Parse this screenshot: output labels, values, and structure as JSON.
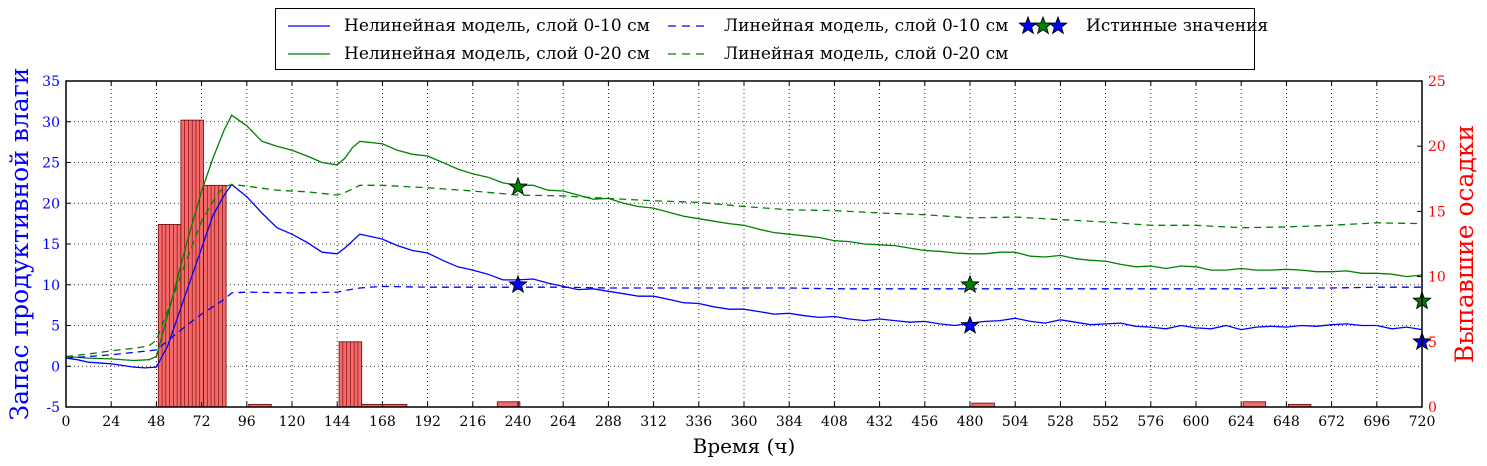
{
  "colors": {
    "blue": "#0000ff",
    "green": "#008000",
    "precip_fill": "#f46a6a",
    "precip_edge": "#6b0000",
    "left_axis": "#0000ff",
    "right_axis": "#ff0000"
  },
  "chart_data": {
    "type": "line",
    "xlabel": "Время (ч)",
    "ylabel_left": "Запас продуктивной влаги",
    "ylabel_right": "Выпавшие осадки",
    "xlim": [
      0,
      720
    ],
    "ylim_left": [
      -5,
      35
    ],
    "ylim_right": [
      0,
      25
    ],
    "x_ticks": [
      0,
      24,
      48,
      72,
      96,
      120,
      144,
      168,
      192,
      216,
      240,
      264,
      288,
      312,
      336,
      360,
      384,
      408,
      432,
      456,
      480,
      504,
      528,
      552,
      576,
      600,
      624,
      648,
      672,
      696,
      720
    ],
    "y_ticks_left": [
      -5,
      0,
      5,
      10,
      15,
      20,
      25,
      30,
      35
    ],
    "y_ticks_right": [
      0,
      5,
      10,
      15,
      20,
      25
    ],
    "grid": true,
    "legend": {
      "placement": "top",
      "entries": [
        "Нелинейная модель, слой 0-10 см",
        "Нелинейная модель, слой 0-20 см",
        "Линейная модель, слой 0-10 см",
        "Линейная модель, слой 0-20 см",
        "Истинные значения"
      ]
    },
    "series": [
      {
        "name": "Нелинейная модель, слой 0-10 см",
        "color": "#0000ff",
        "style": "solid",
        "x": [
          0,
          6,
          12,
          24,
          36,
          42,
          48,
          54,
          60,
          66,
          72,
          78,
          84,
          88,
          96,
          104,
          112,
          120,
          128,
          136,
          144,
          148,
          156,
          160,
          168,
          176,
          184,
          192,
          200,
          208,
          216,
          224,
          232,
          240,
          248,
          256,
          264,
          272,
          280,
          288,
          296,
          304,
          312,
          320,
          328,
          336,
          344,
          352,
          360,
          368,
          376,
          384,
          392,
          400,
          408,
          416,
          424,
          432,
          440,
          448,
          456,
          464,
          472,
          480,
          488,
          496,
          504,
          512,
          520,
          528,
          536,
          544,
          552,
          560,
          568,
          576,
          584,
          592,
          600,
          608,
          616,
          624,
          632,
          640,
          648,
          656,
          664,
          672,
          680,
          688,
          696,
          704,
          712,
          720
        ],
        "y": [
          1.0,
          0.8,
          0.5,
          0.3,
          -0.1,
          -0.2,
          -0.1,
          2.5,
          6.5,
          10.5,
          14.5,
          18.5,
          21.0,
          22.3,
          20.8,
          18.8,
          17.0,
          16.2,
          15.2,
          14.0,
          13.8,
          14.5,
          16.2,
          16.0,
          15.6,
          14.8,
          14.2,
          13.9,
          13.0,
          12.2,
          11.8,
          11.3,
          10.6,
          10.6,
          10.7,
          10.2,
          9.8,
          9.4,
          9.5,
          9.2,
          8.9,
          8.6,
          8.6,
          8.2,
          7.8,
          7.7,
          7.3,
          7.0,
          7.0,
          6.7,
          6.4,
          6.5,
          6.2,
          6.0,
          6.1,
          5.8,
          5.6,
          5.8,
          5.6,
          5.4,
          5.5,
          5.2,
          5.0,
          5.3,
          5.5,
          5.6,
          5.9,
          5.5,
          5.3,
          5.7,
          5.4,
          5.1,
          5.2,
          5.3,
          4.9,
          4.8,
          4.6,
          5.0,
          4.7,
          4.6,
          5.0,
          4.5,
          4.8,
          4.9,
          4.8,
          5.0,
          4.9,
          5.1,
          5.2,
          5.0,
          5.0,
          4.6,
          4.8,
          4.5
        ]
      },
      {
        "name": "Нелинейная модель, слой 0-20 см",
        "color": "#008000",
        "style": "solid",
        "x": [
          0,
          12,
          24,
          36,
          44,
          48,
          56,
          64,
          72,
          78,
          84,
          88,
          96,
          104,
          112,
          120,
          128,
          136,
          144,
          148,
          152,
          156,
          168,
          176,
          184,
          192,
          200,
          208,
          216,
          224,
          232,
          240,
          248,
          256,
          264,
          272,
          280,
          288,
          296,
          304,
          312,
          320,
          328,
          336,
          344,
          352,
          360,
          368,
          376,
          384,
          392,
          400,
          408,
          416,
          424,
          432,
          440,
          448,
          456,
          464,
          472,
          480,
          488,
          496,
          504,
          512,
          520,
          528,
          536,
          544,
          552,
          560,
          568,
          576,
          584,
          592,
          600,
          608,
          616,
          624,
          632,
          640,
          648,
          656,
          664,
          672,
          680,
          688,
          696,
          704,
          712,
          720
        ],
        "y": [
          1.2,
          1.0,
          0.9,
          0.7,
          0.8,
          1.2,
          8.0,
          15.0,
          21.5,
          25.5,
          29.0,
          30.8,
          29.5,
          27.6,
          27.0,
          26.5,
          25.8,
          25.0,
          24.7,
          25.5,
          26.8,
          27.6,
          27.3,
          26.5,
          26.0,
          25.8,
          25.0,
          24.2,
          23.6,
          23.2,
          22.5,
          22.2,
          22.2,
          21.6,
          21.5,
          21.0,
          20.5,
          20.6,
          20.0,
          19.6,
          19.4,
          18.9,
          18.4,
          18.1,
          17.8,
          17.5,
          17.3,
          16.8,
          16.4,
          16.2,
          16.0,
          15.8,
          15.4,
          15.3,
          15.0,
          14.9,
          14.8,
          14.5,
          14.2,
          14.1,
          13.9,
          13.8,
          13.8,
          14.0,
          14.0,
          13.5,
          13.4,
          13.6,
          13.2,
          13.0,
          12.9,
          12.5,
          12.2,
          12.3,
          12.0,
          12.3,
          12.2,
          11.8,
          11.8,
          12.0,
          11.8,
          11.8,
          11.9,
          11.8,
          11.6,
          11.6,
          11.7,
          11.4,
          11.4,
          11.3,
          11.0,
          11.2
        ]
      },
      {
        "name": "Линейная модель, слой 0-10 см",
        "color": "#0000ff",
        "style": "dashed",
        "x": [
          0,
          12,
          24,
          36,
          44,
          48,
          56,
          64,
          72,
          80,
          84,
          88,
          96,
          120,
          144,
          148,
          156,
          168,
          192,
          216,
          240,
          264,
          288,
          312,
          336,
          360,
          384,
          408,
          432,
          456,
          480,
          504,
          528,
          552,
          576,
          600,
          624,
          648,
          672,
          696,
          720
        ],
        "y": [
          1.0,
          1.2,
          1.4,
          1.7,
          1.9,
          2.0,
          3.5,
          5.0,
          6.4,
          7.6,
          8.2,
          9.0,
          9.1,
          9.0,
          9.1,
          9.3,
          9.6,
          9.8,
          9.7,
          9.7,
          9.7,
          9.7,
          9.6,
          9.6,
          9.6,
          9.6,
          9.6,
          9.5,
          9.5,
          9.5,
          9.5,
          9.5,
          9.5,
          9.5,
          9.5,
          9.5,
          9.5,
          9.6,
          9.6,
          9.7,
          9.7
        ]
      },
      {
        "name": "Линейная модель, слой 0-20 см",
        "color": "#008000",
        "style": "dashed",
        "x": [
          0,
          12,
          24,
          36,
          44,
          48,
          56,
          64,
          72,
          80,
          84,
          88,
          96,
          112,
          128,
          144,
          148,
          156,
          168,
          192,
          216,
          240,
          264,
          288,
          312,
          336,
          360,
          384,
          408,
          432,
          456,
          480,
          504,
          528,
          552,
          576,
          600,
          624,
          648,
          672,
          696,
          720
        ],
        "y": [
          1.2,
          1.5,
          1.9,
          2.2,
          2.5,
          3.2,
          8.0,
          13.0,
          17.8,
          21.0,
          22.0,
          22.3,
          22.1,
          21.6,
          21.4,
          21.0,
          21.3,
          22.2,
          22.2,
          21.9,
          21.5,
          21.0,
          20.9,
          20.6,
          20.3,
          20.1,
          19.6,
          19.2,
          19.1,
          18.8,
          18.6,
          18.2,
          18.3,
          18.0,
          17.7,
          17.3,
          17.3,
          17.0,
          17.1,
          17.3,
          17.6,
          17.5
        ]
      }
    ],
    "true_values": [
      {
        "x": 240,
        "y": 10.0,
        "layer": "0-10",
        "color": "#0000ff"
      },
      {
        "x": 240,
        "y": 22.0,
        "layer": "0-20",
        "color": "#008000"
      },
      {
        "x": 480,
        "y": 5.0,
        "layer": "0-10",
        "color": "#0000ff"
      },
      {
        "x": 480,
        "y": 10.0,
        "layer": "0-20",
        "color": "#008000"
      },
      {
        "x": 720,
        "y": 3.0,
        "layer": "0-10",
        "color": "#0000ff"
      },
      {
        "x": 720,
        "y": 8.0,
        "layer": "0-20",
        "color": "#008000"
      }
    ],
    "precipitation": {
      "axis": "right",
      "bars": [
        {
          "x0": 49,
          "x1": 61,
          "value": 14.0
        },
        {
          "x0": 61,
          "x1": 73,
          "value": 22.0
        },
        {
          "x0": 73,
          "x1": 85,
          "value": 17.0
        },
        {
          "x0": 97,
          "x1": 109,
          "value": 0.2
        },
        {
          "x0": 145,
          "x1": 157,
          "value": 5.0
        },
        {
          "x0": 157,
          "x1": 181,
          "value": 0.2
        },
        {
          "x0": 229,
          "x1": 241,
          "value": 0.4
        },
        {
          "x0": 481,
          "x1": 493,
          "value": 0.3
        },
        {
          "x0": 625,
          "x1": 637,
          "value": 0.4
        },
        {
          "x0": 649,
          "x1": 661,
          "value": 0.2
        }
      ]
    }
  }
}
